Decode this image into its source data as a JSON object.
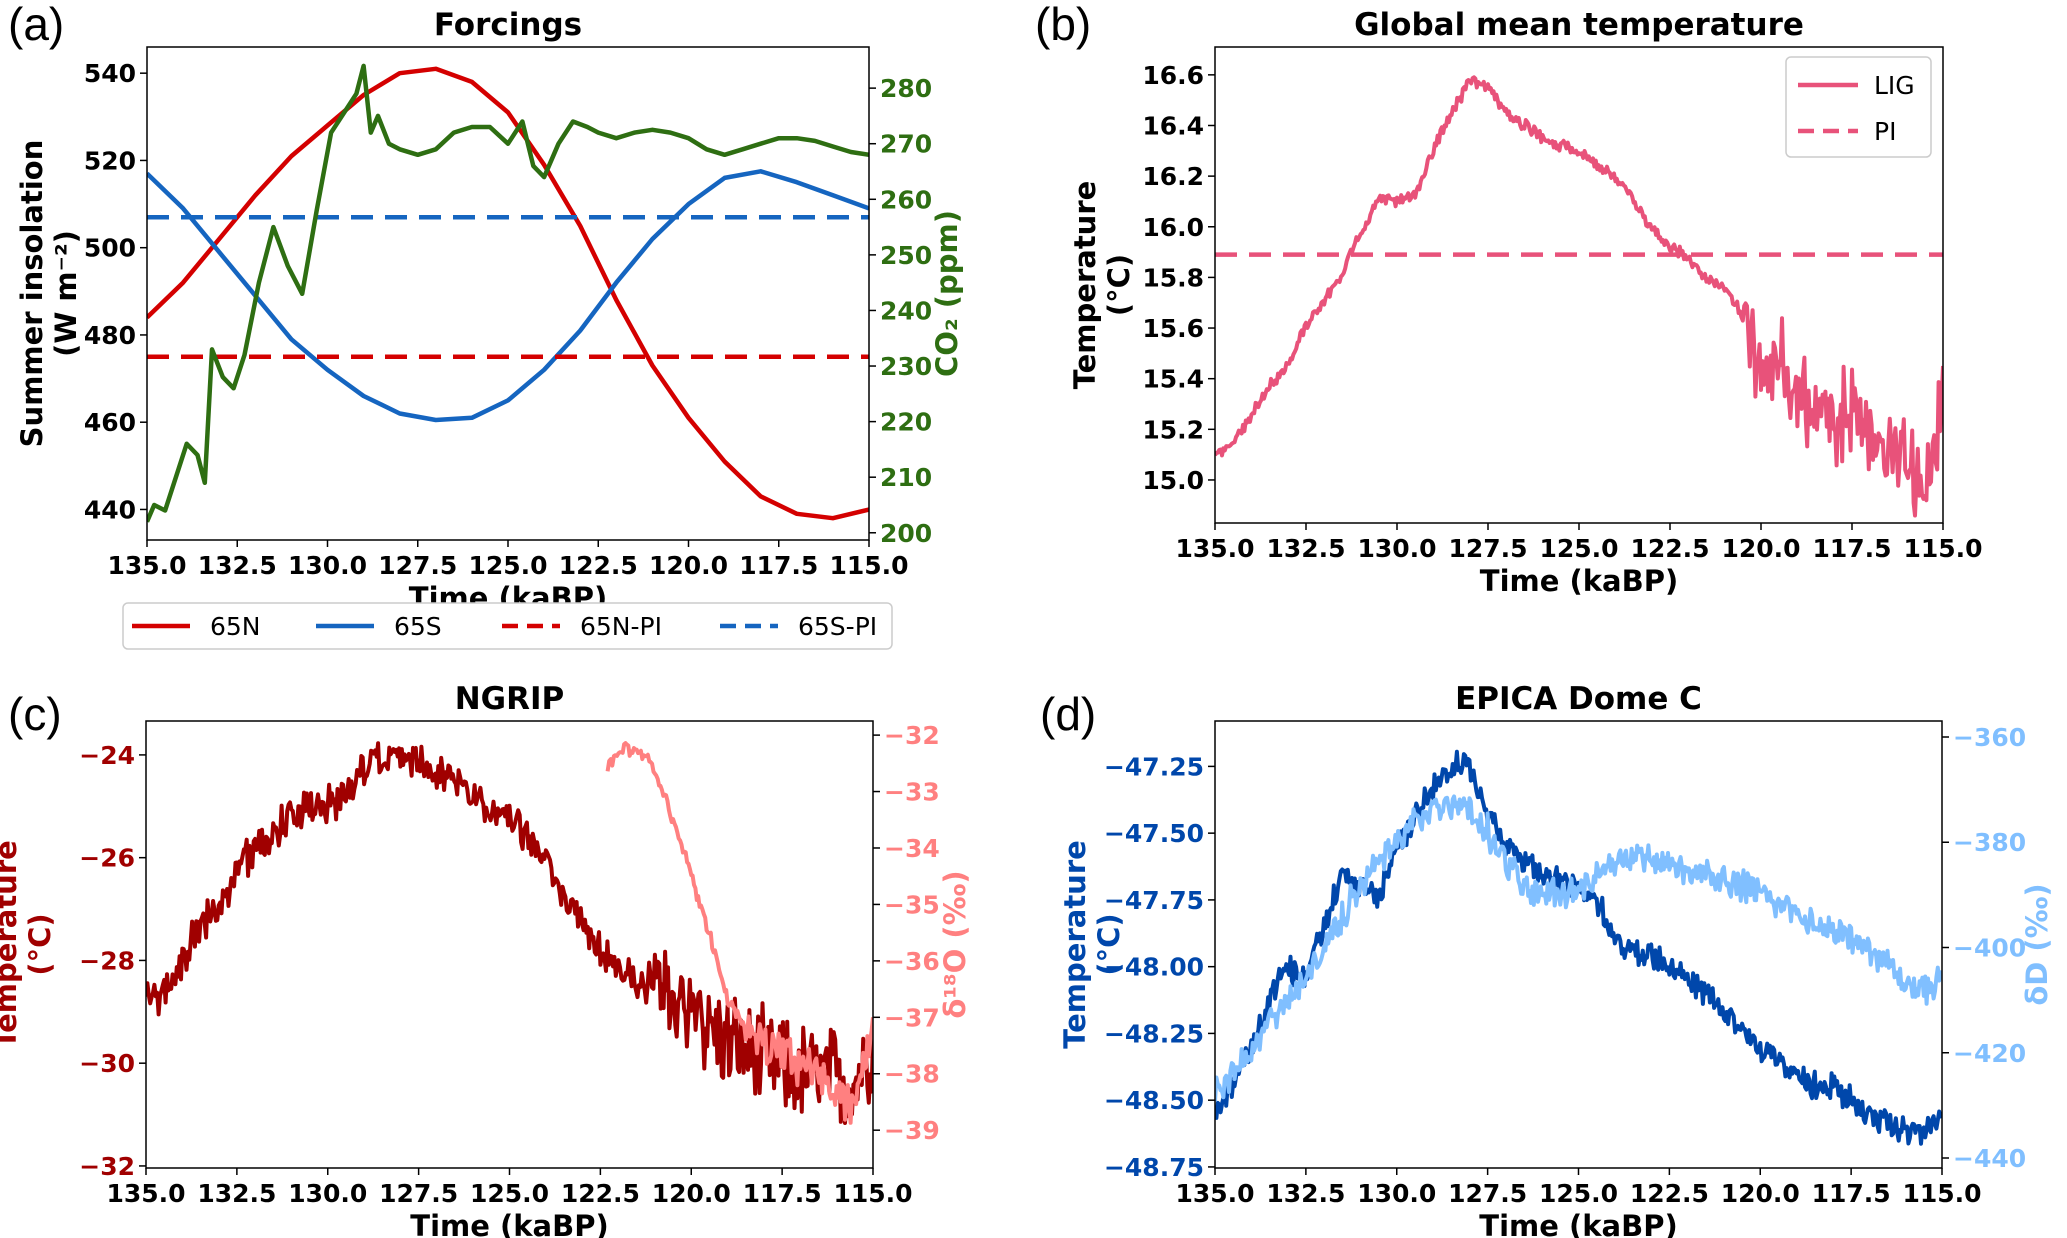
{
  "chart_data": [
    {
      "id": "a",
      "panel_label": "(a)",
      "type": "line",
      "title": "Forcings",
      "xlabel": "Time (kaBP)",
      "xlim": [
        135,
        115
      ],
      "xticks": [
        135,
        132.5,
        130,
        127.5,
        125,
        122.5,
        120,
        117.5,
        115
      ],
      "xtick_labels": [
        "135.0",
        "132.5",
        "130.0",
        "127.5",
        "125.0",
        "122.5",
        "120.0",
        "117.5",
        "115.0"
      ],
      "ylabel": [
        "Summer insolation",
        "(W m⁻²)"
      ],
      "ylabel_color": "#000000",
      "ylim": [
        433,
        546
      ],
      "yticks": [
        440,
        460,
        480,
        500,
        520,
        540
      ],
      "ytick_labels": [
        "440",
        "460",
        "480",
        "500",
        "520",
        "540"
      ],
      "y2label": "CO₂ (ppm)",
      "y2label_color": "#2e6e12",
      "y2lim": [
        198.7,
        287.4
      ],
      "y2ticks": [
        200,
        210,
        220,
        230,
        240,
        250,
        260,
        270,
        280
      ],
      "y2tick_labels": [
        "200",
        "210",
        "220",
        "230",
        "240",
        "250",
        "260",
        "270",
        "280"
      ],
      "legend": {
        "placement": "below",
        "entries": [
          {
            "label": "65N",
            "color": "#d40000",
            "dash": false
          },
          {
            "label": "65S",
            "color": "#1565c0",
            "dash": false
          },
          {
            "label": "65N-PI",
            "color": "#d40000",
            "dash": true
          },
          {
            "label": "65S-PI",
            "color": "#1565c0",
            "dash": true
          }
        ]
      },
      "series": [
        {
          "name": "65N",
          "axis": "left",
          "color": "#d40000",
          "noise": 0,
          "x": [
            135,
            134,
            133,
            132,
            131,
            130,
            129,
            128,
            127,
            126,
            125,
            124,
            123,
            122,
            121,
            120,
            119,
            118,
            117,
            116,
            115
          ],
          "y": [
            484,
            492,
            502,
            512,
            521,
            528,
            535,
            540,
            541,
            538,
            531,
            519,
            505,
            488,
            473,
            461,
            451,
            443,
            439,
            438,
            440
          ]
        },
        {
          "name": "65S",
          "axis": "left",
          "color": "#1565c0",
          "noise": 0,
          "x": [
            135,
            134,
            133,
            132,
            131,
            130,
            129,
            128,
            127,
            126,
            125,
            124,
            123,
            122,
            121,
            120,
            119,
            118,
            117,
            116,
            115
          ],
          "y": [
            517,
            509,
            499,
            489,
            479,
            472,
            466,
            462,
            460.5,
            461,
            465,
            472,
            481,
            492,
            502,
            510,
            516,
            517.5,
            515,
            512,
            509
          ]
        },
        {
          "name": "65N-PI",
          "axis": "left",
          "color": "#d40000",
          "dash": true,
          "noise": 0,
          "x": [
            135,
            115
          ],
          "y": [
            475,
            475
          ]
        },
        {
          "name": "65S-PI",
          "axis": "left",
          "color": "#1565c0",
          "dash": true,
          "noise": 0,
          "x": [
            135,
            115
          ],
          "y": [
            507,
            507
          ]
        },
        {
          "name": "CO2",
          "axis": "right",
          "color": "#2e6e12",
          "noise": 0,
          "x": [
            135,
            134.8,
            134.5,
            134.2,
            133.9,
            133.6,
            133.4,
            133.2,
            132.9,
            132.6,
            132.3,
            131.9,
            131.5,
            131.1,
            130.7,
            130.3,
            129.9,
            129.5,
            129.2,
            129.0,
            128.8,
            128.6,
            128.3,
            128,
            127.5,
            127,
            126.5,
            126,
            125.5,
            125,
            124.6,
            124.3,
            124,
            123.6,
            123.2,
            122.8,
            122.5,
            122,
            121.5,
            121,
            120.5,
            120,
            119.5,
            119,
            118.5,
            118,
            117.5,
            117,
            116.5,
            116,
            115.5,
            115
          ],
          "y": [
            202,
            205,
            204,
            210,
            216,
            214,
            209,
            233,
            228,
            226,
            232,
            245,
            255,
            248,
            243,
            258,
            272,
            276,
            279,
            284,
            272,
            275,
            270,
            269,
            268,
            269,
            272,
            273,
            273,
            270,
            274,
            266,
            264,
            270,
            274,
            273,
            272,
            271,
            272,
            272.5,
            272,
            271,
            269,
            268,
            269,
            270,
            271,
            271,
            270.5,
            269.5,
            268.5,
            268
          ]
        }
      ]
    },
    {
      "id": "b",
      "panel_label": "(b)",
      "type": "line",
      "title": "Global mean temperature",
      "xlabel": "Time (kaBP)",
      "xlim": [
        135,
        115
      ],
      "xticks": [
        135,
        132.5,
        130,
        127.5,
        125,
        122.5,
        120,
        117.5,
        115
      ],
      "xtick_labels": [
        "135.0",
        "132.5",
        "130.0",
        "127.5",
        "125.0",
        "122.5",
        "120.0",
        "117.5",
        "115.0"
      ],
      "ylabel": [
        "Temperature",
        "(°C)"
      ],
      "ylabel_color": "#000000",
      "ylim": [
        14.83,
        16.71
      ],
      "yticks": [
        15.0,
        15.2,
        15.4,
        15.6,
        15.8,
        16.0,
        16.2,
        16.4,
        16.6
      ],
      "ytick_labels": [
        "15.0",
        "15.2",
        "15.4",
        "15.6",
        "15.8",
        "16.0",
        "16.2",
        "16.4",
        "16.6"
      ],
      "legend": {
        "placement": "top-right",
        "entries": [
          {
            "label": "LIG",
            "color": "#e8527a",
            "dash": false
          },
          {
            "label": "PI",
            "color": "#e8527a",
            "dash": true
          }
        ]
      },
      "series": [
        {
          "name": "LIG",
          "axis": "left",
          "color": "#e8527a",
          "noise": 0.03,
          "noise_late": 0.22,
          "late_from": 120.5,
          "x": [
            135,
            134.5,
            134,
            133.5,
            133,
            132.5,
            132,
            131.5,
            131,
            130.5,
            130,
            129.5,
            129,
            128.5,
            128,
            127.5,
            127,
            126.5,
            126,
            125.5,
            125,
            124.5,
            124,
            123.5,
            123,
            122.5,
            122,
            121.5,
            121,
            120.5,
            120,
            119.5,
            119,
            118.5,
            118,
            117.5,
            117,
            116.5,
            116,
            115.5,
            115.2,
            115
          ],
          "y": [
            15.1,
            15.15,
            15.25,
            15.38,
            15.45,
            15.62,
            15.7,
            15.82,
            15.98,
            16.12,
            16.1,
            16.12,
            16.3,
            16.45,
            16.58,
            16.55,
            16.45,
            16.4,
            16.35,
            16.32,
            16.3,
            16.25,
            16.2,
            16.1,
            16.0,
            15.92,
            15.88,
            15.8,
            15.75,
            15.65,
            15.4,
            15.45,
            15.32,
            15.28,
            15.22,
            15.25,
            15.15,
            15.1,
            15.05,
            15.0,
            15.05,
            15.45
          ]
        },
        {
          "name": "PI",
          "axis": "left",
          "color": "#e8527a",
          "dash": true,
          "noise": 0,
          "x": [
            135,
            115
          ],
          "y": [
            15.89,
            15.89
          ]
        }
      ]
    },
    {
      "id": "c",
      "panel_label": "(c)",
      "type": "line",
      "title": "NGRIP",
      "xlabel": "Time (kaBP)",
      "xlim": [
        135,
        115
      ],
      "xticks": [
        135,
        132.5,
        130,
        127.5,
        125,
        122.5,
        120,
        117.5,
        115
      ],
      "xtick_labels": [
        "135.0",
        "132.5",
        "130.0",
        "127.5",
        "125.0",
        "122.5",
        "120.0",
        "117.5",
        "115.0"
      ],
      "ylabel": [
        "Temperature",
        "(°C)"
      ],
      "ylabel_color": "#a00000",
      "ylim": [
        -32.04,
        -23.34
      ],
      "yticks": [
        -32,
        -30,
        -28,
        -26,
        -24
      ],
      "ytick_labels": [
        "−32",
        "−30",
        "−28",
        "−26",
        "−24"
      ],
      "y2label": "δ¹⁸O (‰)",
      "y2label_color": "#ff8080",
      "y2lim": [
        -39.67,
        -31.75
      ],
      "y2ticks": [
        -39,
        -38,
        -37,
        -36,
        -35,
        -34,
        -33,
        -32
      ],
      "y2tick_labels": [
        "−39",
        "−38",
        "−37",
        "−36",
        "−35",
        "−34",
        "−33",
        "−32"
      ],
      "series": [
        {
          "name": "NGRIP temperature",
          "axis": "left",
          "color": "#a00000",
          "noise": 0.45,
          "noise_late": 1.2,
          "late_from": 121,
          "x": [
            135,
            134.5,
            134,
            133.5,
            133,
            132.5,
            132,
            131.5,
            131,
            130.5,
            130,
            129.5,
            129,
            128.5,
            128,
            127.5,
            127,
            126,
            125,
            124,
            123.5,
            123,
            122.5,
            122,
            121,
            120,
            119,
            118,
            117,
            116,
            115.5,
            115
          ],
          "y": [
            -28.6,
            -28.7,
            -28.1,
            -27.3,
            -27.0,
            -26.3,
            -25.8,
            -25.6,
            -25.2,
            -25.0,
            -24.9,
            -24.8,
            -24.3,
            -24.1,
            -24.0,
            -24.1,
            -24.3,
            -24.8,
            -25.3,
            -26.0,
            -26.8,
            -27.3,
            -27.8,
            -28.2,
            -28.5,
            -29.0,
            -29.6,
            -30.0,
            -30.2,
            -30.3,
            -30.4,
            -29.5
          ]
        },
        {
          "name": "NGRIP δ18O",
          "axis": "right",
          "color": "#ff8080",
          "noise": 0.15,
          "noise_late": 0.5,
          "late_from": 118.5,
          "x": [
            122.3,
            122,
            121.5,
            121,
            120.5,
            120,
            119.5,
            119,
            118.5,
            118,
            117,
            116,
            115.5,
            115
          ],
          "y": [
            -32.6,
            -32.3,
            -32.2,
            -32.6,
            -33.5,
            -34.5,
            -35.5,
            -36.7,
            -37.2,
            -37.4,
            -37.8,
            -38.3,
            -38.6,
            -37.0
          ]
        }
      ]
    },
    {
      "id": "d",
      "panel_label": "(d)",
      "type": "line",
      "title": "EPICA Dome C",
      "xlabel": "Time (kaBP)",
      "xlim": [
        135,
        115
      ],
      "xticks": [
        135,
        132.5,
        130,
        127.5,
        125,
        122.5,
        120,
        117.5,
        115
      ],
      "xtick_labels": [
        "135.0",
        "132.5",
        "130.0",
        "127.5",
        "125.0",
        "122.5",
        "120.0",
        "117.5",
        "115.0"
      ],
      "ylabel": [
        "Temperature",
        "(°C)"
      ],
      "ylabel_color": "#0047ab",
      "ylim": [
        -48.754,
        -47.08
      ],
      "yticks": [
        -48.75,
        -48.5,
        -48.25,
        -48.0,
        -47.75,
        -47.5,
        -47.25
      ],
      "ytick_labels": [
        "−48.75",
        "−48.50",
        "−48.25",
        "−48.00",
        "−47.75",
        "−47.50",
        "−47.25"
      ],
      "y2label": "δD (‰)",
      "y2label_color": "#80bfff",
      "y2lim": [
        -441.9,
        -356.96
      ],
      "y2ticks": [
        -440,
        -420,
        -400,
        -380,
        -360
      ],
      "y2tick_labels": [
        "−440",
        "−420",
        "−400",
        "−380",
        "−360"
      ],
      "series": [
        {
          "name": "EDC temperature",
          "axis": "left",
          "color": "#0047ab",
          "noise": 0.06,
          "x": [
            135,
            134.5,
            134,
            133.5,
            133,
            132.5,
            132,
            131.5,
            131,
            130.5,
            130,
            129.5,
            129,
            128.5,
            128,
            127.5,
            127,
            126.5,
            126,
            125,
            124.5,
            124,
            123.5,
            123,
            122.5,
            122,
            121.5,
            121,
            120.5,
            120,
            119.5,
            119,
            118.5,
            118,
            117.5,
            117,
            116.5,
            116,
            115.5,
            115
          ],
          "y": [
            -48.55,
            -48.45,
            -48.3,
            -48.12,
            -48.0,
            -48.05,
            -47.85,
            -47.65,
            -47.7,
            -47.75,
            -47.55,
            -47.45,
            -47.33,
            -47.25,
            -47.25,
            -47.42,
            -47.55,
            -47.6,
            -47.65,
            -47.7,
            -47.75,
            -47.9,
            -47.95,
            -47.95,
            -48.0,
            -48.05,
            -48.1,
            -48.15,
            -48.25,
            -48.3,
            -48.35,
            -48.4,
            -48.45,
            -48.45,
            -48.5,
            -48.55,
            -48.6,
            -48.6,
            -48.62,
            -48.55
          ]
        },
        {
          "name": "EDC δD",
          "axis": "right",
          "color": "#80bfff",
          "noise": 3.5,
          "x": [
            135,
            134.5,
            134,
            133.5,
            133,
            132.5,
            132,
            131.5,
            131,
            130.5,
            130,
            129.5,
            129,
            128.5,
            128,
            127.5,
            127,
            126.5,
            126,
            125.5,
            125,
            124.5,
            124,
            123.5,
            123,
            122.5,
            122,
            121.5,
            121,
            120.5,
            120,
            119.5,
            119,
            118.5,
            118,
            117.5,
            117,
            116.5,
            116,
            115.5,
            115
          ],
          "y": [
            -428,
            -424,
            -420,
            -414,
            -410,
            -406,
            -400,
            -394,
            -388,
            -384,
            -380,
            -376,
            -374,
            -372,
            -374,
            -378,
            -384,
            -388,
            -390,
            -390,
            -389,
            -386,
            -384,
            -383,
            -384,
            -385,
            -386,
            -386,
            -387,
            -388,
            -389,
            -392,
            -394,
            -395,
            -397,
            -398,
            -400,
            -403,
            -407,
            -408,
            -406
          ]
        }
      ]
    }
  ]
}
